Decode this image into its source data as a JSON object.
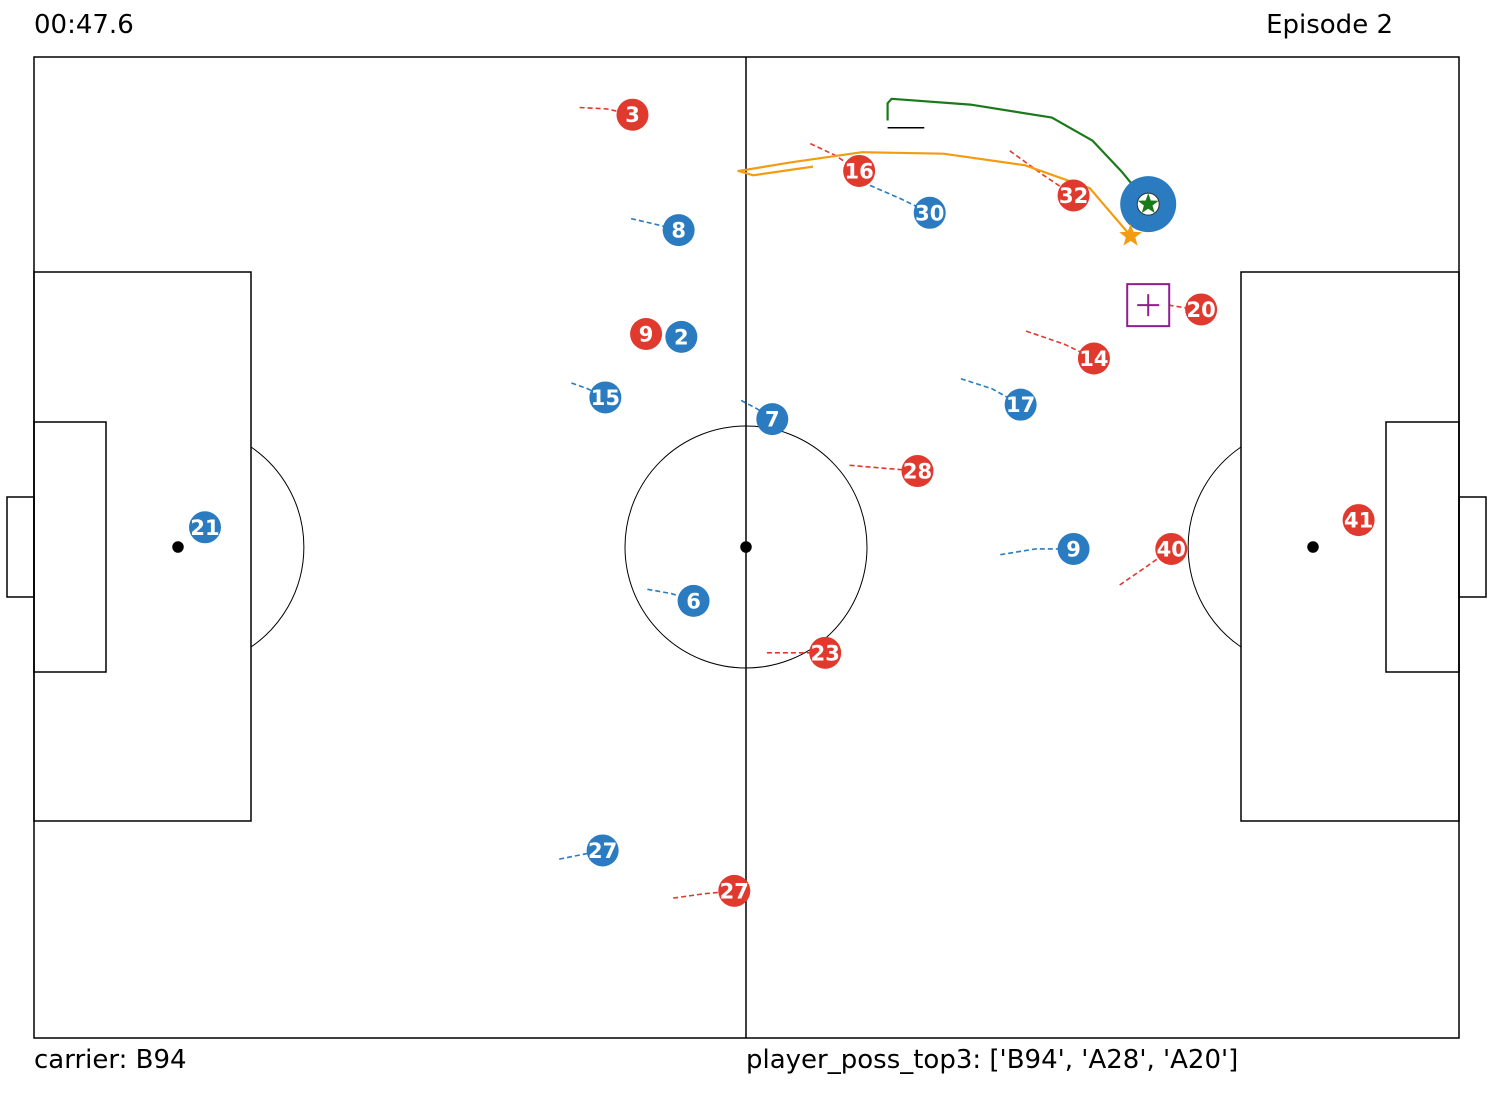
{
  "header": {
    "clock": "00:47.6",
    "episode": "Episode 2"
  },
  "footer": {
    "carrier": "carrier: B94",
    "topk": "player_poss_top3: ['B94', 'A28', 'A20']"
  },
  "colors": {
    "team_a": "#e03a2f",
    "team_b": "#2a7bbf",
    "ball": "#1a7a1a",
    "predicted": "#f39c12",
    "target": "#8e1f8e"
  },
  "pitch": {
    "length": 105,
    "width": 68
  },
  "players": [
    {
      "id": "A3",
      "team": "A",
      "label": "3",
      "x": 44.1,
      "y": 4.0,
      "trail": [
        [
          40.2,
          3.5
        ],
        [
          42.2,
          3.6
        ]
      ]
    },
    {
      "id": "A16",
      "team": "A",
      "label": "16",
      "x": 60.8,
      "y": 7.9,
      "trail": [
        [
          57.2,
          6.0
        ],
        [
          59.0,
          6.8
        ]
      ]
    },
    {
      "id": "A32",
      "team": "A",
      "label": "32",
      "x": 76.6,
      "y": 9.6,
      "trail": [
        [
          71.9,
          6.5
        ],
        [
          74.4,
          8.2
        ]
      ]
    },
    {
      "id": "A9",
      "team": "A",
      "label": "9",
      "x": 45.1,
      "y": 19.2,
      "trail": []
    },
    {
      "id": "A20",
      "team": "A",
      "label": "20",
      "x": 86.0,
      "y": 17.5,
      "trail": [
        [
          83.6,
          17.2
        ],
        [
          84.9,
          17.4
        ]
      ]
    },
    {
      "id": "A14",
      "team": "A",
      "label": "14",
      "x": 78.1,
      "y": 20.9,
      "trail": [
        [
          73.1,
          19.0
        ],
        [
          75.9,
          19.9
        ]
      ]
    },
    {
      "id": "A28",
      "team": "A",
      "label": "28",
      "x": 65.1,
      "y": 28.7,
      "trail": [
        [
          60.1,
          28.3
        ],
        [
          62.6,
          28.5
        ]
      ]
    },
    {
      "id": "A40",
      "team": "A",
      "label": "40",
      "x": 83.8,
      "y": 34.1,
      "trail": [
        [
          80.0,
          36.6
        ],
        [
          82.0,
          35.3
        ]
      ]
    },
    {
      "id": "A41",
      "team": "A",
      "label": "41",
      "x": 97.6,
      "y": 32.1,
      "trail": []
    },
    {
      "id": "A23",
      "team": "A",
      "label": "23",
      "x": 58.3,
      "y": 41.3,
      "trail": [
        [
          54.0,
          41.3
        ],
        [
          56.1,
          41.3
        ]
      ]
    },
    {
      "id": "A27",
      "team": "A",
      "label": "27",
      "x": 51.6,
      "y": 57.8,
      "trail": [
        [
          47.1,
          58.3
        ],
        [
          49.4,
          58.0
        ]
      ]
    },
    {
      "id": "B8",
      "team": "B",
      "label": "8",
      "x": 47.5,
      "y": 12.0,
      "trail": [
        [
          44.0,
          11.2
        ],
        [
          45.8,
          11.6
        ]
      ]
    },
    {
      "id": "B30",
      "team": "B",
      "label": "30",
      "x": 66.0,
      "y": 10.8,
      "trail": [
        [
          61.6,
          8.9
        ],
        [
          63.8,
          9.8
        ]
      ]
    },
    {
      "id": "B2",
      "team": "B",
      "label": "2",
      "x": 47.7,
      "y": 19.4,
      "trail": []
    },
    {
      "id": "B15",
      "team": "B",
      "label": "15",
      "x": 42.1,
      "y": 23.6,
      "trail": [
        [
          39.6,
          22.6
        ],
        [
          40.8,
          23.0
        ]
      ]
    },
    {
      "id": "B7",
      "team": "B",
      "label": "7",
      "x": 54.4,
      "y": 25.1,
      "trail": [
        [
          52.1,
          23.8
        ],
        [
          53.3,
          24.4
        ]
      ]
    },
    {
      "id": "B17",
      "team": "B",
      "label": "17",
      "x": 72.7,
      "y": 24.1,
      "trail": [
        [
          68.3,
          22.3
        ],
        [
          70.6,
          23.0
        ]
      ]
    },
    {
      "id": "B21",
      "team": "B",
      "label": "21",
      "x": 12.6,
      "y": 32.6,
      "trail": [
        [
          11.9,
          32.9
        ],
        [
          12.2,
          32.8
        ]
      ]
    },
    {
      "id": "B9",
      "team": "B",
      "label": "9",
      "x": 76.6,
      "y": 34.1,
      "trail": [
        [
          71.2,
          34.5
        ],
        [
          73.8,
          34.1
        ]
      ]
    },
    {
      "id": "B6",
      "team": "B",
      "label": "6",
      "x": 48.6,
      "y": 37.7,
      "trail": [
        [
          45.2,
          36.9
        ],
        [
          47.0,
          37.2
        ]
      ]
    },
    {
      "id": "B27",
      "team": "B",
      "label": "27",
      "x": 41.9,
      "y": 55.0,
      "trail": [
        [
          38.7,
          55.6
        ],
        [
          40.3,
          55.3
        ]
      ]
    },
    {
      "id": "B94",
      "team": "B",
      "label": "",
      "x": 82.1,
      "y": 10.2,
      "trail": [],
      "carrier": true
    }
  ],
  "ball": {
    "x": 82.1,
    "y": 10.2,
    "trail": [
      [
        62.9,
        4.4
      ],
      [
        62.9,
        3.2
      ],
      [
        63.2,
        2.9
      ],
      [
        69.0,
        3.3
      ],
      [
        75.0,
        4.2
      ],
      [
        78.0,
        5.8
      ],
      [
        80.2,
        8.0
      ],
      [
        82.1,
        10.2
      ]
    ],
    "stub": [
      [
        62.9,
        4.9
      ],
      [
        65.6,
        4.9
      ]
    ]
  },
  "predicted": {
    "x": 80.8,
    "y": 12.4,
    "trail": [
      [
        57.4,
        7.6
      ],
      [
        53.0,
        8.2
      ],
      [
        51.9,
        7.9
      ],
      [
        55.8,
        7.3
      ],
      [
        61.0,
        6.6
      ],
      [
        67.0,
        6.7
      ],
      [
        73.0,
        7.5
      ],
      [
        77.8,
        9.1
      ],
      [
        80.8,
        12.4
      ]
    ]
  },
  "target": {
    "x": 82.1,
    "y": 17.2
  }
}
